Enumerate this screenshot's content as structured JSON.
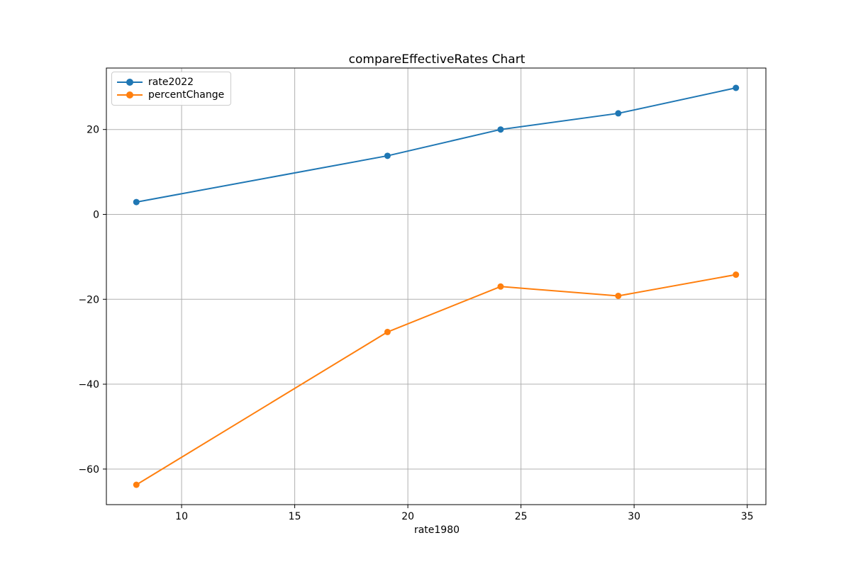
{
  "figure": {
    "background": "#ffffff"
  },
  "style": {
    "grid_color": "#b0b0b0",
    "spine_color": "#000000",
    "text_color": "#000000",
    "tick_font_size": 14,
    "title_font_size": 17
  },
  "chart_data": {
    "type": "line",
    "title": "compareEffectiveRates Chart",
    "xlabel": "rate1980",
    "ylabel": "",
    "x": [
      8.0,
      19.1,
      24.1,
      29.3,
      34.5
    ],
    "series": [
      {
        "name": "rate2022",
        "color": "#1f77b4",
        "marker": "circle",
        "values": [
          2.9,
          13.8,
          20.0,
          23.8,
          29.8
        ]
      },
      {
        "name": "percentChange",
        "color": "#ff7f0e",
        "marker": "circle",
        "values": [
          -63.7,
          -27.7,
          -17.0,
          -19.2,
          -14.2
        ]
      }
    ],
    "xlim": [
      6.675,
      35.825
    ],
    "ylim": [
      -68.375,
      34.475
    ],
    "xticks": {
      "values": [
        10,
        15,
        20,
        25,
        30,
        35
      ],
      "labels": [
        "10",
        "15",
        "20",
        "25",
        "30",
        "35"
      ]
    },
    "yticks": {
      "values": [
        -60,
        -40,
        -20,
        0,
        20
      ],
      "labels": [
        "−60",
        "−40",
        "−20",
        "0",
        "20"
      ]
    },
    "grid": true,
    "legend_position": "upper left"
  }
}
